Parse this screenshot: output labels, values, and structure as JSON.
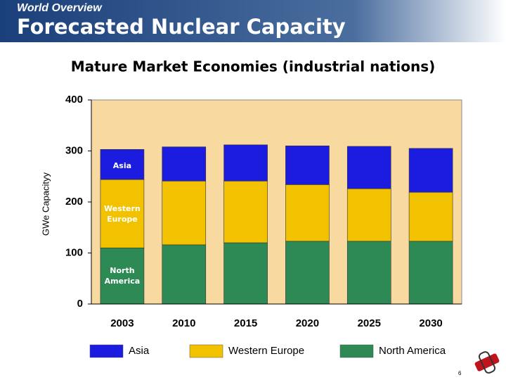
{
  "header": {
    "section": "World Overview",
    "title": "Forecasted Nuclear Capacity"
  },
  "chart_data": {
    "type": "stacked_bar",
    "title": "Mature Market Economies (industrial nations)",
    "y_label": "GWe Capacityy",
    "categories": [
      "2003",
      "2010",
      "2015",
      "2020",
      "2025",
      "2030"
    ],
    "series": [
      {
        "name": "Asia",
        "color": "#1c1ce0",
        "values": [
          59,
          67,
          71,
          76,
          83,
          86
        ]
      },
      {
        "name": "Western Europe",
        "color": "#f2c200",
        "values": [
          134,
          125,
          121,
          111,
          103,
          96
        ]
      },
      {
        "name": "North America",
        "color": "#2e8a55",
        "values": [
          110,
          116,
          120,
          123,
          123,
          123
        ]
      }
    ],
    "annotations": [
      "Asia",
      "Western Europe",
      "North America"
    ],
    "ylim": [
      0,
      400
    ],
    "yticks": [
      0,
      100,
      200,
      300,
      400
    ],
    "grid": false,
    "plot_background": "#f8d9a0",
    "legend": "bottom"
  },
  "footer": {
    "page_number": "6"
  }
}
